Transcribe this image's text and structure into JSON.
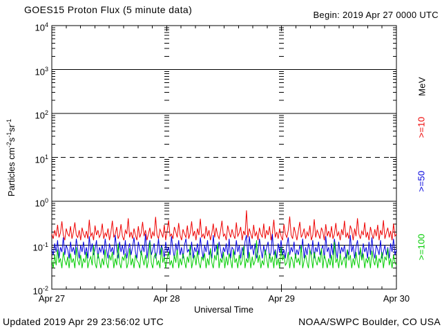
{
  "header": {
    "title": "GOES15 Proton Flux (5 minute data)",
    "begin_label": "Begin: 2019 Apr 27 0000 UTC"
  },
  "footer": {
    "updated": "Updated 2019 Apr 29 23:56:02 UTC",
    "source": "NOAA/SWPC Boulder, CO USA"
  },
  "chart_data": {
    "type": "line",
    "title": "GOES15 Proton Flux (5 minute data)",
    "xlabel": "Universal Time",
    "ylabel": "Particles cm-2s-1sr-1",
    "ylabel_parts": [
      {
        "t": "Particles  cm"
      },
      {
        "sup": "-2"
      },
      {
        "t": "s"
      },
      {
        "sup": "-1"
      },
      {
        "t": "sr"
      },
      {
        "sup": "-1"
      }
    ],
    "y_scale": "log",
    "ylim": [
      0.01,
      10000
    ],
    "y_tick_exponents": [
      "4",
      "3",
      "2",
      "1",
      "0",
      "-1",
      "-2"
    ],
    "solid_gridlines": [
      1000,
      100,
      1,
      0.1
    ],
    "dashed_gridlines": [
      10
    ],
    "x_tick_labels": [
      "Apr 27",
      "Apr 28",
      "Apr 29",
      "Apr 30"
    ],
    "x_range_days": 3,
    "x_minor_tick_hours": 3,
    "day_boundary_labels": [
      "Apr 28",
      "Apr 29"
    ],
    "units_label": "MeV",
    "legend_position": "right",
    "grid": "partial-horizontal",
    "series": [
      {
        "name": "Protons >=10 MeV",
        "label": ">=10",
        "color": "#ee0000",
        "values": [
          0.18,
          0.14,
          0.22,
          0.16,
          0.29,
          0.15,
          0.19,
          0.35,
          0.17,
          0.13,
          0.24,
          0.18,
          0.16,
          0.27,
          0.14,
          0.2,
          0.33,
          0.17,
          0.15,
          0.22,
          0.13,
          0.25,
          0.18,
          0.15,
          0.21,
          0.14,
          0.38,
          0.16,
          0.19,
          0.13,
          0.28,
          0.17,
          0.22,
          0.15,
          0.18,
          0.31,
          0.14,
          0.19,
          0.16,
          0.24,
          0.13,
          0.2,
          0.36,
          0.15,
          0.18,
          0.26,
          0.14,
          0.17,
          0.3,
          0.16,
          0.13,
          0.22,
          0.18,
          0.41,
          0.15,
          0.2,
          0.14,
          0.24,
          0.17,
          0.13,
          0.27,
          0.15,
          0.19,
          0.34,
          0.16,
          0.22,
          0.13,
          0.18,
          0.25,
          0.14,
          0.2,
          0.16,
          0.44,
          0.17,
          0.14,
          0.23,
          0.19,
          0.15,
          0.29,
          0.13,
          0.21,
          0.37,
          0.16,
          0.18,
          0.14,
          0.26,
          0.2,
          0.15,
          0.32,
          0.17,
          0.13,
          0.23,
          0.18,
          0.15,
          0.28,
          0.14,
          0.19,
          0.35,
          0.16,
          0.21,
          0.13,
          0.24,
          0.17,
          0.4,
          0.15,
          0.18,
          0.14,
          0.27,
          0.16,
          0.22,
          0.13,
          0.19,
          0.31,
          0.15,
          0.25,
          0.17,
          0.14,
          0.21,
          0.36,
          0.16,
          0.18,
          0.13,
          0.28,
          0.2,
          0.15,
          0.23,
          0.17,
          0.14,
          0.33,
          0.16,
          0.19,
          0.26,
          0.13,
          0.21,
          0.17,
          0.62,
          0.15,
          0.24,
          0.18,
          0.14,
          0.29,
          0.16,
          0.2,
          0.13,
          0.25,
          0.18,
          0.15,
          0.31,
          0.14,
          0.22,
          0.17,
          0.27,
          0.13,
          0.19,
          0.38,
          0.15,
          0.2,
          0.14,
          0.24,
          0.16,
          0.13,
          0.3,
          0.18,
          0.15,
          0.22,
          0.45,
          0.17,
          0.14,
          0.26,
          0.19,
          0.13,
          0.21,
          0.34,
          0.15,
          0.18,
          0.24,
          0.14,
          0.2,
          0.16,
          0.28,
          0.13,
          0.17,
          0.39,
          0.15,
          0.22,
          0.18,
          0.14,
          0.25,
          0.2,
          0.13,
          0.3,
          0.16,
          0.21,
          0.15,
          0.27,
          0.14,
          0.18,
          0.32,
          0.16,
          0.2,
          0.13,
          0.23,
          0.17,
          0.36,
          0.15,
          0.19,
          0.14,
          0.28,
          0.22,
          0.13,
          0.24,
          0.16,
          0.41,
          0.18,
          0.14,
          0.21,
          0.17,
          0.33,
          0.15,
          0.2,
          0.13,
          0.26,
          0.18,
          0.14,
          0.23,
          0.16,
          0.29,
          0.13,
          0.22,
          0.17,
          0.37,
          0.14,
          0.19,
          0.25,
          0.15,
          0.21,
          0.13,
          0.31,
          0.16,
          0.18
        ]
      },
      {
        "name": "Protons >=50 MeV",
        "label": ">=50",
        "color": "#0000dd",
        "values": [
          0.08,
          0.06,
          0.11,
          0.07,
          0.13,
          0.05,
          0.09,
          0.07,
          0.15,
          0.06,
          0.1,
          0.08,
          0.05,
          0.12,
          0.07,
          0.09,
          0.06,
          0.14,
          0.08,
          0.05,
          0.1,
          0.07,
          0.12,
          0.06,
          0.09,
          0.05,
          0.16,
          0.07,
          0.11,
          0.06,
          0.08,
          0.13,
          0.05,
          0.09,
          0.07,
          0.1,
          0.06,
          0.14,
          0.08,
          0.05,
          0.11,
          0.07,
          0.09,
          0.06,
          0.17,
          0.08,
          0.05,
          0.12,
          0.07,
          0.1,
          0.06,
          0.13,
          0.05,
          0.08,
          0.11,
          0.06,
          0.09,
          0.15,
          0.07,
          0.05,
          0.12,
          0.08,
          0.06,
          0.1,
          0.07,
          0.18,
          0.05,
          0.09,
          0.13,
          0.06,
          0.08,
          0.11,
          0.05,
          0.07,
          0.14,
          0.06,
          0.1,
          0.08,
          0.05,
          0.12,
          0.07,
          0.09,
          0.06,
          0.16,
          0.08,
          0.05,
          0.11,
          0.07,
          0.13,
          0.06,
          0.09,
          0.05,
          0.1,
          0.14,
          0.07,
          0.08,
          0.06,
          0.12,
          0.05,
          0.09,
          0.07,
          0.11,
          0.06,
          0.15,
          0.08,
          0.05,
          0.1,
          0.07,
          0.13,
          0.06,
          0.08,
          0.05,
          0.17,
          0.07,
          0.1,
          0.06,
          0.12,
          0.08,
          0.05,
          0.09,
          0.07,
          0.11,
          0.06,
          0.14,
          0.05,
          0.09,
          0.08,
          0.06,
          0.13,
          0.07,
          0.1,
          0.05,
          0.09,
          0.06,
          0.12,
          0.17,
          0.05,
          0.16,
          0.08,
          0.1,
          0.06,
          0.11,
          0.05,
          0.07,
          0.14,
          0.08,
          0.05,
          0.1,
          0.06,
          0.09,
          0.12,
          0.05,
          0.07,
          0.18,
          0.06,
          0.08,
          0.05,
          0.11,
          0.07,
          0.13,
          0.06,
          0.08,
          0.05,
          0.1,
          0.15,
          0.06,
          0.09,
          0.07,
          0.12,
          0.05,
          0.08,
          0.06,
          0.1,
          0.07,
          0.14,
          0.05,
          0.09,
          0.06,
          0.11,
          0.08,
          0.06,
          0.13,
          0.05,
          0.09,
          0.07,
          0.12,
          0.06,
          0.08,
          0.1,
          0.05,
          0.16,
          0.07,
          0.09,
          0.05,
          0.11,
          0.06,
          0.14,
          0.08,
          0.05,
          0.12,
          0.06,
          0.09,
          0.07,
          0.1,
          0.05,
          0.08,
          0.06,
          0.17,
          0.07,
          0.1,
          0.05,
          0.09,
          0.13,
          0.06,
          0.08,
          0.05,
          0.11,
          0.07,
          0.09,
          0.05,
          0.12,
          0.06,
          0.15,
          0.07,
          0.05,
          0.1,
          0.08,
          0.06,
          0.13,
          0.05,
          0.07,
          0.1,
          0.06,
          0.09,
          0.05,
          0.11,
          0.07,
          0.14,
          0.06,
          0.08
        ]
      },
      {
        "name": "Protons >=100 MeV",
        "label": ">=100",
        "color": "#00cc00",
        "values": [
          0.045,
          0.03,
          0.06,
          0.035,
          0.08,
          0.04,
          0.05,
          0.03,
          0.07,
          0.045,
          0.035,
          0.055,
          0.03,
          0.065,
          0.04,
          0.05,
          0.03,
          0.09,
          0.045,
          0.035,
          0.06,
          0.03,
          0.05,
          0.04,
          0.07,
          0.03,
          0.045,
          0.055,
          0.035,
          0.1,
          0.04,
          0.03,
          0.065,
          0.045,
          0.03,
          0.05,
          0.035,
          0.08,
          0.04,
          0.03,
          0.06,
          0.045,
          0.07,
          0.03,
          0.05,
          0.035,
          0.11,
          0.04,
          0.03,
          0.055,
          0.045,
          0.065,
          0.03,
          0.04,
          0.085,
          0.035,
          0.05,
          0.03,
          0.06,
          0.045,
          0.04,
          0.03,
          0.075,
          0.05,
          0.035,
          0.06,
          0.03,
          0.045,
          0.12,
          0.04,
          0.03,
          0.055,
          0.065,
          0.035,
          0.045,
          0.03,
          0.09,
          0.04,
          0.055,
          0.03,
          0.05,
          0.07,
          0.035,
          0.045,
          0.03,
          0.06,
          0.04,
          0.08,
          0.03,
          0.05,
          0.035,
          0.065,
          0.045,
          0.03,
          0.055,
          0.04,
          0.1,
          0.03,
          0.045,
          0.06,
          0.035,
          0.075,
          0.04,
          0.03,
          0.055,
          0.045,
          0.065,
          0.03,
          0.05,
          0.035,
          0.085,
          0.04,
          0.03,
          0.06,
          0.045,
          0.11,
          0.03,
          0.05,
          0.04,
          0.07,
          0.03,
          0.055,
          0.035,
          0.065,
          0.045,
          0.03,
          0.08,
          0.04,
          0.05,
          0.03,
          0.06,
          0.035,
          0.045,
          0.095,
          0.03,
          0.05,
          0.04,
          0.07,
          0.03,
          0.055,
          0.035,
          0.045,
          0.13,
          0.04,
          0.06,
          0.03,
          0.045,
          0.035,
          0.08,
          0.05,
          0.03,
          0.065,
          0.04,
          0.055,
          0.03,
          0.075,
          0.035,
          0.05,
          0.03,
          0.09,
          0.045,
          0.06,
          0.035,
          0.04,
          0.07,
          0.03,
          0.055,
          0.045,
          0.03,
          0.065,
          0.04,
          0.05,
          0.035,
          0.1,
          0.03,
          0.045,
          0.06,
          0.04,
          0.03,
          0.08,
          0.055,
          0.03,
          0.07,
          0.045,
          0.035,
          0.055,
          0.04,
          0.085,
          0.03,
          0.06,
          0.045,
          0.03,
          0.05,
          0.035,
          0.06,
          0.03,
          0.12,
          0.04,
          0.05,
          0.03,
          0.065,
          0.035,
          0.045,
          0.055,
          0.03,
          0.08,
          0.045,
          0.06,
          0.03,
          0.05,
          0.035,
          0.07,
          0.04,
          0.03,
          0.09,
          0.045,
          0.065,
          0.03,
          0.05,
          0.04,
          0.055,
          0.03,
          0.075,
          0.045,
          0.035,
          0.06,
          0.03,
          0.05,
          0.04,
          0.07,
          0.03,
          0.055,
          0.045,
          0.085,
          0.035,
          0.05,
          0.03,
          0.06,
          0.04,
          0.035
        ]
      }
    ]
  }
}
